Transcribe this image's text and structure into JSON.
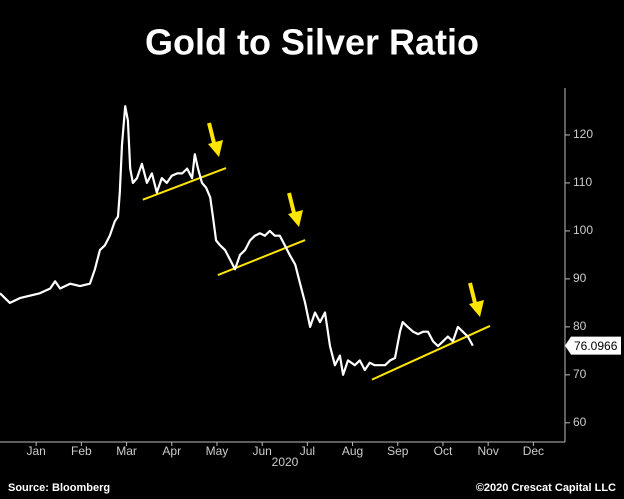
{
  "chart_data": {
    "type": "line",
    "title": "Gold to Silver Ratio",
    "x_axis_label": "2020",
    "source": "Source: Bloomberg",
    "copyright": "©2020 Crescat Capital LLC",
    "xlim": [
      -0.3,
      12.2
    ],
    "xticks": [
      {
        "value": 0.5,
        "label": "Jan"
      },
      {
        "value": 1.5,
        "label": "Feb"
      },
      {
        "value": 2.5,
        "label": "Mar"
      },
      {
        "value": 3.5,
        "label": "Apr"
      },
      {
        "value": 4.5,
        "label": "May"
      },
      {
        "value": 5.5,
        "label": "Jun"
      },
      {
        "value": 6.5,
        "label": "Jul"
      },
      {
        "value": 7.5,
        "label": "Aug"
      },
      {
        "value": 8.5,
        "label": "Sep"
      },
      {
        "value": 9.5,
        "label": "Oct"
      },
      {
        "value": 10.5,
        "label": "Nov"
      },
      {
        "value": 11.5,
        "label": "Dec"
      }
    ],
    "ylim": [
      56,
      130
    ],
    "yticks": [
      60,
      70,
      80,
      90,
      100,
      110,
      120
    ],
    "x": [
      -0.3,
      -0.08,
      0.14,
      0.36,
      0.58,
      0.81,
      0.92,
      1.03,
      1.25,
      1.47,
      1.69,
      1.8,
      1.91,
      2.02,
      2.13,
      2.24,
      2.31,
      2.35,
      2.4,
      2.47,
      2.53,
      2.58,
      2.64,
      2.73,
      2.84,
      2.95,
      3.06,
      3.17,
      3.28,
      3.39,
      3.5,
      3.62,
      3.73,
      3.84,
      3.95,
      4.01,
      4.08,
      4.17,
      4.26,
      4.35,
      4.41,
      4.48,
      4.57,
      4.68,
      4.79,
      4.9,
      5.01,
      5.12,
      5.23,
      5.34,
      5.45,
      5.56,
      5.67,
      5.78,
      5.89,
      6.0,
      6.11,
      6.23,
      6.34,
      6.45,
      6.56,
      6.67,
      6.78,
      6.89,
      7.0,
      7.11,
      7.22,
      7.29,
      7.4,
      7.55,
      7.66,
      7.77,
      7.88,
      7.99,
      8.11,
      8.22,
      8.33,
      8.44,
      8.55,
      8.61,
      8.72,
      8.84,
      8.95,
      9.06,
      9.17,
      9.28,
      9.39,
      9.5,
      9.61,
      9.72,
      9.83,
      9.94,
      10.05,
      10.16
    ],
    "series": [
      {
        "name": "Gold to Silver Ratio",
        "color": "#ffffff",
        "values": [
          87,
          85,
          86,
          86.5,
          87,
          88,
          89.5,
          88,
          89,
          88.5,
          89,
          92,
          96,
          97,
          99,
          102,
          103,
          108,
          118,
          126,
          123,
          113,
          110,
          111,
          114,
          110,
          112,
          108,
          111,
          110,
          111.5,
          112,
          112,
          113,
          111,
          116,
          113,
          110,
          109,
          107,
          103,
          98,
          97,
          96,
          94,
          92,
          95,
          96,
          98,
          99,
          99.5,
          99,
          100,
          99,
          99,
          97,
          95,
          93,
          89,
          85,
          80,
          83,
          81,
          83,
          76,
          72,
          74,
          70,
          73,
          72,
          73,
          71,
          72.5,
          72,
          72,
          72,
          73,
          73.5,
          79,
          81,
          80,
          79,
          78.5,
          79,
          79,
          77,
          76,
          77,
          78,
          77,
          80,
          79,
          78,
          76.0966
        ]
      }
    ],
    "last_value": 76.0966,
    "trendlines": [
      {
        "x": [
          2.86,
          4.7
        ],
        "y": [
          106.5,
          113.1
        ]
      },
      {
        "x": [
          4.52,
          6.45
        ],
        "y": [
          90.8,
          98.1
        ]
      },
      {
        "x": [
          7.93,
          10.54
        ],
        "y": [
          69.0,
          80.2
        ]
      }
    ],
    "trendline_color": "#ffe600"
  }
}
